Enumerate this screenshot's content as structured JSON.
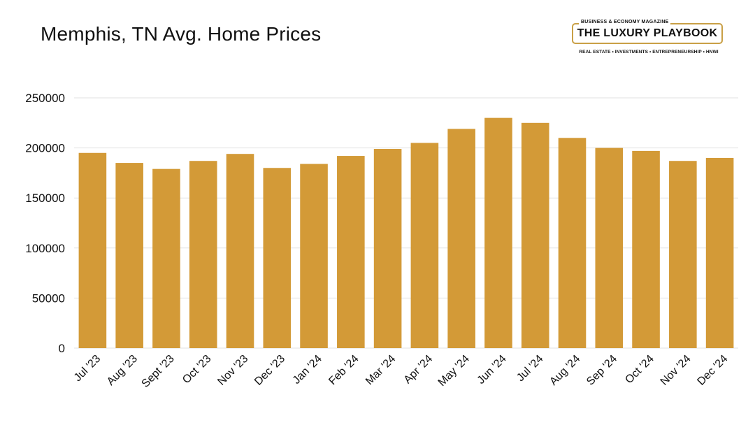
{
  "brand": {
    "kicker": "BUSINESS & ECONOMY MAGAZINE",
    "name": "THE LUXURY PLAYBOOK",
    "tagline": "REAL ESTATE • INVESTMENTS • ENTREPRENEURSHIP • HNWI"
  },
  "chart_data": {
    "type": "bar",
    "title": "Memphis, TN Avg. Home Prices",
    "xlabel": "",
    "ylabel": "",
    "categories": [
      "Jul '23",
      "Aug '23",
      "Sept '23",
      "Oct '23",
      "Nov '23",
      "Dec '23",
      "Jan '24",
      "Feb '24",
      "Mar '24",
      "Apr '24",
      "May '24",
      "Jun '24",
      "Jul '24",
      "Aug '24",
      "Sep '24",
      "Oct '24",
      "Nov '24",
      "Dec '24"
    ],
    "values": [
      195000,
      185000,
      179000,
      187000,
      194000,
      180000,
      184000,
      192000,
      199000,
      205000,
      219000,
      230000,
      225000,
      210000,
      200000,
      197000,
      187000,
      190000
    ],
    "ylim": [
      0,
      250000
    ],
    "yticks": [
      0,
      50000,
      100000,
      150000,
      200000,
      250000
    ],
    "grid": true,
    "legend": "none",
    "bar_color": "#d39a37",
    "grid_color": "#e2e2e2"
  }
}
